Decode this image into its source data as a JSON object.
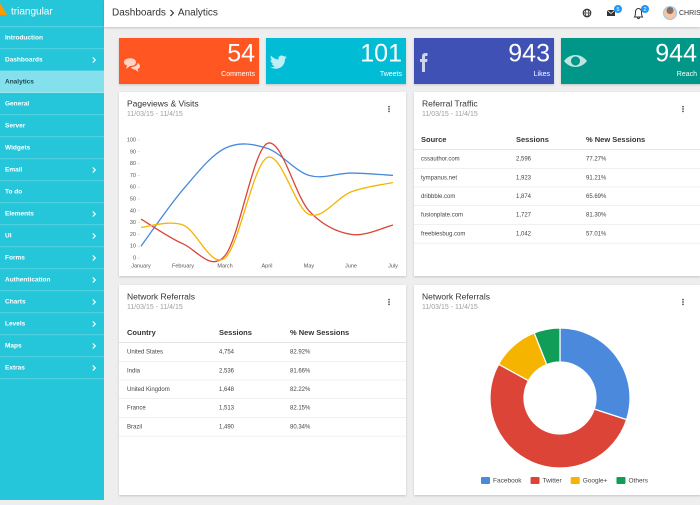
{
  "sidebar": {
    "brand": "triangular",
    "menu": [
      {
        "label": "Introduction"
      },
      {
        "label": "Dashboards",
        "submenu": true
      },
      {
        "label": "Analytics",
        "active": true
      },
      {
        "label": "General"
      },
      {
        "label": "Server"
      },
      {
        "label": "Widgets"
      },
      {
        "label": "Email",
        "submenu": true
      },
      {
        "label": "To do"
      },
      {
        "label": "Elements",
        "submenu": true
      },
      {
        "label": "UI",
        "submenu": true
      },
      {
        "label": "Forms",
        "submenu": true
      },
      {
        "label": "Authentication",
        "submenu": true
      },
      {
        "label": "Charts",
        "submenu": true
      },
      {
        "label": "Levels",
        "submenu": true
      },
      {
        "label": "Maps",
        "submenu": true
      },
      {
        "label": "Extras",
        "submenu": true
      }
    ]
  },
  "topbar": {
    "breadcrumb": [
      "Dashboards",
      "Analytics"
    ],
    "badges": [
      5,
      2
    ],
    "user": "CHRIST"
  },
  "stats": [
    {
      "value": 54,
      "label": "Comments",
      "color": "#ff5722"
    },
    {
      "value": 101,
      "label": "Tweets",
      "color": "#00bcd4"
    },
    {
      "value": 943,
      "label": "Likes",
      "color": "#3f51b5"
    },
    {
      "value": 944,
      "label": "Reach",
      "color": "#009688"
    }
  ],
  "pageviews": {
    "title": "Pageviews & Visits",
    "subtitle": "11/03/15 - 11/4/15",
    "chart_data": {
      "type": "line",
      "categories": [
        "January",
        "February",
        "March",
        "April",
        "May",
        "June",
        "July"
      ],
      "series": [
        {
          "color": "#4a89dc",
          "values": [
            10,
            58,
            93,
            93,
            70,
            72,
            70
          ]
        },
        {
          "color": "#db4437",
          "values": [
            33,
            12,
            2,
            97,
            40,
            20,
            28
          ]
        },
        {
          "color": "#f4b400",
          "values": [
            26,
            28,
            0,
            85,
            37,
            56,
            64
          ]
        }
      ],
      "ylim": [
        0,
        100
      ],
      "yticks": [
        0,
        10,
        20,
        30,
        40,
        50,
        60,
        70,
        80,
        90,
        100
      ]
    }
  },
  "referral": {
    "title": "Referral Traffic",
    "subtitle": "11/03/15 - 11/4/15",
    "table": {
      "header": [
        "Source",
        "Sessions",
        "% New Sessions"
      ],
      "rows": [
        [
          "cssauthor.com",
          "2,596",
          "77.27%"
        ],
        [
          "tympanus.net",
          "1,923",
          "91.21%"
        ],
        [
          "dribbble.com",
          "1,874",
          "65.69%"
        ],
        [
          "fusionplate.com",
          "1,727",
          "81.30%"
        ],
        [
          "freebiesbug.com",
          "1,042",
          "57.01%"
        ]
      ]
    }
  },
  "network_table": {
    "title": "Network Referrals",
    "subtitle": "11/03/15 - 11/4/15",
    "table": {
      "header": [
        "Country",
        "Sessions",
        "% New Sessions"
      ],
      "rows": [
        [
          "United States",
          "4,754",
          "82.92%"
        ],
        [
          "India",
          "2,536",
          "81.66%"
        ],
        [
          "United Kingdom",
          "1,648",
          "82.22%"
        ],
        [
          "France",
          "1,513",
          "82.15%"
        ],
        [
          "Brazil",
          "1,490",
          "80.34%"
        ]
      ]
    }
  },
  "network_donut": {
    "title": "Network Referrals",
    "subtitle": "11/03/15 - 11/4/15",
    "chart_data": {
      "type": "pie",
      "categories": [
        "Facebook",
        "Twitter",
        "Google+",
        "Others"
      ],
      "values": [
        30,
        53,
        11,
        6
      ],
      "colors": [
        "#4a89dc",
        "#db4437",
        "#f4b400",
        "#0f9d58"
      ]
    }
  }
}
